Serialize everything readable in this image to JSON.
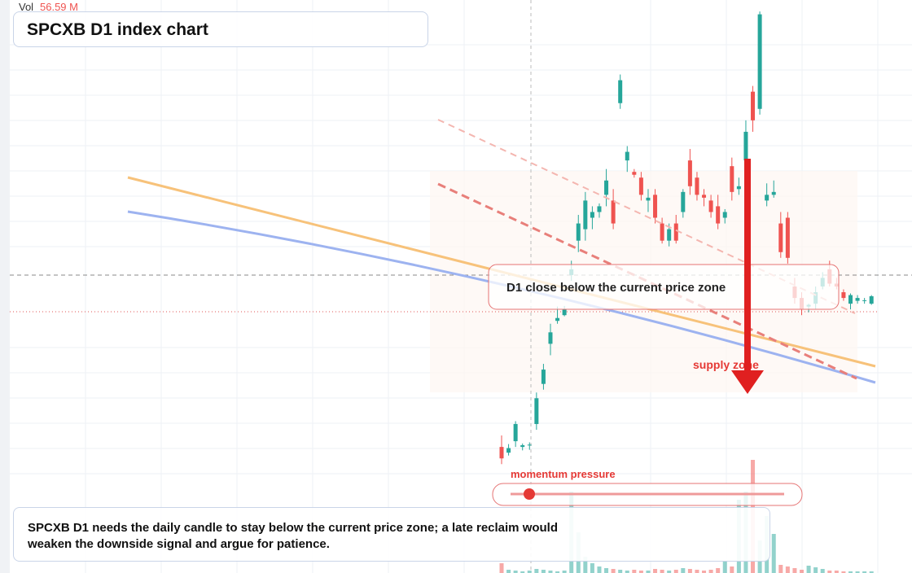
{
  "chart_data": {
    "type": "candlestick",
    "title": "SPCXB D1 index chart",
    "volume_label": "Vol",
    "volume_value": "56.59 M",
    "zone_label": "D1 close below the current price zone",
    "supply_label": "supply zone",
    "momentum_label": "momentum pressure",
    "note": "SPCXB D1 needs the daily candle to stay below the current price zone; a late reclaim would weaken the downside signal and argue for patience.",
    "ylim": [
      0,
      100
    ],
    "volume_ylim": [
      0,
      150
    ],
    "up_color": "#26a69a",
    "down_color": "#ef5350",
    "open": [
      22,
      21,
      23,
      22,
      22.3,
      26,
      33,
      40,
      44,
      45,
      52,
      58,
      60,
      62,
      63,
      66,
      65,
      82,
      72,
      70,
      69,
      65,
      66,
      61,
      58,
      61,
      63,
      72,
      69,
      66,
      65,
      64,
      62,
      71,
      67,
      72,
      84,
      81,
      65,
      66,
      61,
      62,
      50,
      48,
      46.5,
      47,
      50,
      53,
      50.5,
      49,
      47,
      47.5,
      47.5,
      47
    ],
    "high": [
      24,
      22.5,
      26.5,
      22.6,
      22.8,
      31.5,
      36.5,
      43.5,
      46.5,
      46.6,
      54.5,
      62.5,
      66.5,
      64,
      64.5,
      70.5,
      67,
      87,
      74.5,
      70.5,
      70,
      67,
      67,
      62,
      61,
      62.5,
      67,
      74,
      70,
      67,
      66,
      66,
      63.5,
      72.5,
      69,
      79,
      85,
      98,
      68,
      68.5,
      63,
      63,
      51.5,
      49,
      47,
      50,
      52.5,
      54.5,
      51.5,
      49.5,
      48.8,
      48.5,
      48,
      48.5
    ],
    "low": [
      19,
      20.5,
      22,
      21.4,
      21.5,
      25,
      32,
      38,
      43.5,
      44.8,
      51,
      56,
      58,
      60,
      62,
      64,
      60,
      81,
      70,
      69,
      65,
      63,
      61,
      57.5,
      57,
      57.5,
      62,
      66,
      65,
      64,
      62,
      60,
      61,
      65,
      66,
      71,
      77,
      80,
      64,
      65.5,
      55,
      54,
      47,
      45,
      45.5,
      46,
      49.5,
      50,
      49.5,
      47.5,
      46,
      47,
      47,
      46.8
    ],
    "close": [
      20,
      21.8,
      26,
      22.3,
      22.4,
      30.5,
      35.5,
      42,
      44.5,
      46,
      53,
      61,
      65,
      63,
      64,
      68.5,
      61,
      86,
      73.5,
      69.5,
      66,
      65.5,
      62,
      58,
      60,
      58,
      66.5,
      67.5,
      66,
      65.5,
      63,
      61,
      63,
      66.5,
      67.5,
      77,
      79,
      97.5,
      66,
      66.5,
      56,
      55,
      48,
      46,
      46.8,
      49,
      51.5,
      50.5,
      50,
      48,
      48.5,
      48,
      47.6,
      48.3
    ],
    "volume": [
      12,
      4,
      3,
      2,
      3,
      5,
      4,
      3,
      2,
      3,
      100,
      50,
      20,
      12,
      8,
      6,
      5,
      4,
      3,
      4,
      3,
      3,
      5,
      4,
      3,
      4,
      6,
      5,
      4,
      3,
      4,
      6,
      15,
      8,
      90,
      100,
      139,
      40,
      70,
      48,
      10,
      8,
      6,
      4,
      9,
      7,
      5,
      3,
      3,
      2,
      2,
      2,
      2,
      2
    ]
  }
}
